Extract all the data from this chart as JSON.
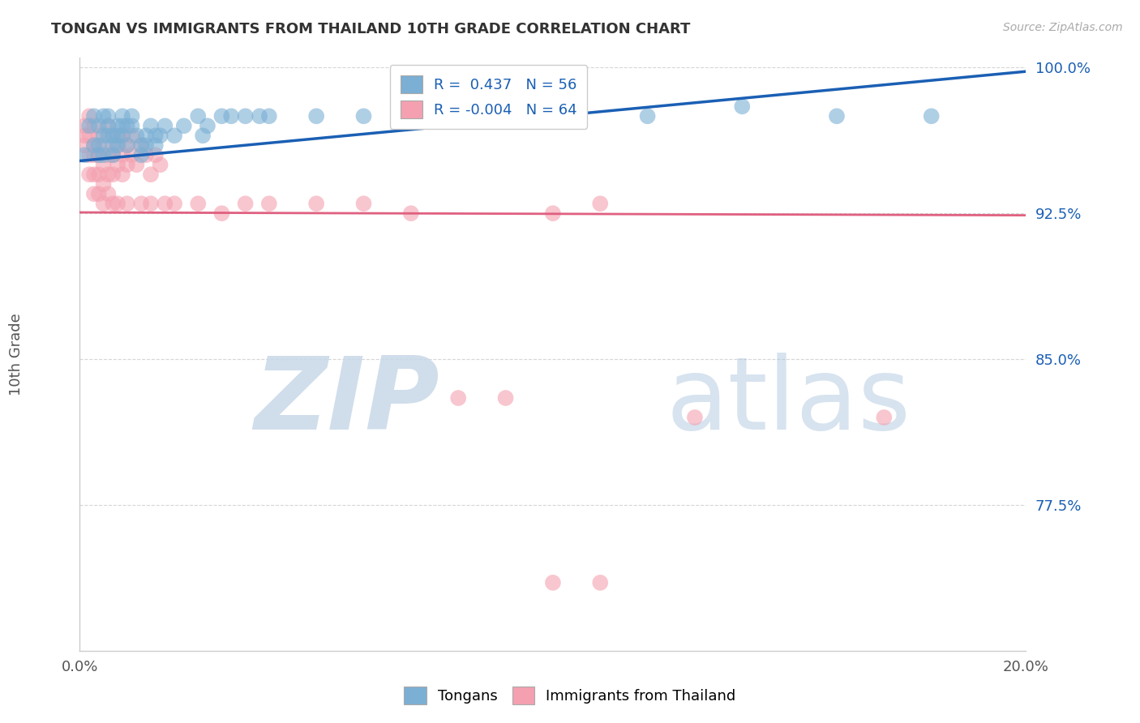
{
  "title": "TONGAN VS IMMIGRANTS FROM THAILAND 10TH GRADE CORRELATION CHART",
  "source": "Source: ZipAtlas.com",
  "xlabel": "",
  "ylabel": "10th Grade",
  "xlim": [
    0.0,
    0.2
  ],
  "ylim": [
    0.7,
    1.005
  ],
  "xticks": [
    0.0,
    0.05,
    0.1,
    0.15,
    0.2
  ],
  "xticklabels": [
    "0.0%",
    "",
    "",
    "",
    "20.0%"
  ],
  "ytick_positions": [
    0.775,
    0.85,
    0.925,
    1.0
  ],
  "ytick_labels": [
    "77.5%",
    "85.0%",
    "92.5%",
    "100.0%"
  ],
  "legend_r1": "R =  0.437   N = 56",
  "legend_r2": "R = -0.004   N = 64",
  "blue_color": "#7bafd4",
  "pink_color": "#f4a0b0",
  "blue_line_color": "#1a5fb4",
  "pink_line_color": "#e06080",
  "blue_scatter": [
    [
      0.001,
      0.955
    ],
    [
      0.002,
      0.97
    ],
    [
      0.003,
      0.96
    ],
    [
      0.003,
      0.975
    ],
    [
      0.004,
      0.97
    ],
    [
      0.004,
      0.96
    ],
    [
      0.004,
      0.955
    ],
    [
      0.005,
      0.975
    ],
    [
      0.005,
      0.965
    ],
    [
      0.005,
      0.955
    ],
    [
      0.006,
      0.975
    ],
    [
      0.006,
      0.97
    ],
    [
      0.006,
      0.965
    ],
    [
      0.007,
      0.965
    ],
    [
      0.007,
      0.96
    ],
    [
      0.007,
      0.955
    ],
    [
      0.008,
      0.97
    ],
    [
      0.008,
      0.965
    ],
    [
      0.008,
      0.96
    ],
    [
      0.009,
      0.975
    ],
    [
      0.009,
      0.97
    ],
    [
      0.009,
      0.965
    ],
    [
      0.01,
      0.97
    ],
    [
      0.01,
      0.96
    ],
    [
      0.011,
      0.975
    ],
    [
      0.011,
      0.97
    ],
    [
      0.012,
      0.965
    ],
    [
      0.013,
      0.96
    ],
    [
      0.013,
      0.955
    ],
    [
      0.014,
      0.965
    ],
    [
      0.014,
      0.96
    ],
    [
      0.015,
      0.97
    ],
    [
      0.016,
      0.965
    ],
    [
      0.016,
      0.96
    ],
    [
      0.017,
      0.965
    ],
    [
      0.018,
      0.97
    ],
    [
      0.02,
      0.965
    ],
    [
      0.022,
      0.97
    ],
    [
      0.025,
      0.975
    ],
    [
      0.026,
      0.965
    ],
    [
      0.027,
      0.97
    ],
    [
      0.03,
      0.975
    ],
    [
      0.032,
      0.975
    ],
    [
      0.035,
      0.975
    ],
    [
      0.038,
      0.975
    ],
    [
      0.04,
      0.975
    ],
    [
      0.05,
      0.975
    ],
    [
      0.06,
      0.975
    ],
    [
      0.07,
      0.975
    ],
    [
      0.08,
      0.975
    ],
    [
      0.09,
      0.98
    ],
    [
      0.1,
      0.985
    ],
    [
      0.12,
      0.975
    ],
    [
      0.14,
      0.98
    ],
    [
      0.16,
      0.975
    ],
    [
      0.18,
      0.975
    ]
  ],
  "pink_scatter": [
    [
      0.001,
      0.97
    ],
    [
      0.001,
      0.965
    ],
    [
      0.001,
      0.96
    ],
    [
      0.002,
      0.975
    ],
    [
      0.002,
      0.965
    ],
    [
      0.002,
      0.955
    ],
    [
      0.002,
      0.945
    ],
    [
      0.003,
      0.97
    ],
    [
      0.003,
      0.96
    ],
    [
      0.003,
      0.955
    ],
    [
      0.003,
      0.945
    ],
    [
      0.003,
      0.935
    ],
    [
      0.004,
      0.965
    ],
    [
      0.004,
      0.955
    ],
    [
      0.004,
      0.945
    ],
    [
      0.004,
      0.935
    ],
    [
      0.005,
      0.96
    ],
    [
      0.005,
      0.95
    ],
    [
      0.005,
      0.94
    ],
    [
      0.005,
      0.93
    ],
    [
      0.006,
      0.97
    ],
    [
      0.006,
      0.955
    ],
    [
      0.006,
      0.945
    ],
    [
      0.006,
      0.935
    ],
    [
      0.007,
      0.965
    ],
    [
      0.007,
      0.955
    ],
    [
      0.007,
      0.945
    ],
    [
      0.007,
      0.93
    ],
    [
      0.008,
      0.96
    ],
    [
      0.008,
      0.95
    ],
    [
      0.008,
      0.93
    ],
    [
      0.009,
      0.965
    ],
    [
      0.009,
      0.955
    ],
    [
      0.009,
      0.945
    ],
    [
      0.01,
      0.96
    ],
    [
      0.01,
      0.95
    ],
    [
      0.01,
      0.93
    ],
    [
      0.011,
      0.965
    ],
    [
      0.011,
      0.955
    ],
    [
      0.012,
      0.95
    ],
    [
      0.013,
      0.96
    ],
    [
      0.013,
      0.93
    ],
    [
      0.014,
      0.955
    ],
    [
      0.015,
      0.945
    ],
    [
      0.015,
      0.93
    ],
    [
      0.016,
      0.955
    ],
    [
      0.017,
      0.95
    ],
    [
      0.018,
      0.93
    ],
    [
      0.02,
      0.93
    ],
    [
      0.025,
      0.93
    ],
    [
      0.03,
      0.925
    ],
    [
      0.035,
      0.93
    ],
    [
      0.04,
      0.93
    ],
    [
      0.05,
      0.93
    ],
    [
      0.06,
      0.93
    ],
    [
      0.07,
      0.925
    ],
    [
      0.08,
      0.83
    ],
    [
      0.09,
      0.83
    ],
    [
      0.1,
      0.925
    ],
    [
      0.11,
      0.93
    ],
    [
      0.13,
      0.82
    ],
    [
      0.17,
      0.82
    ],
    [
      0.1,
      0.735
    ],
    [
      0.11,
      0.735
    ]
  ],
  "blue_reg_line": [
    [
      0.0,
      0.952
    ],
    [
      0.2,
      0.998
    ]
  ],
  "pink_reg_line": [
    [
      0.0,
      0.9255
    ],
    [
      0.2,
      0.924
    ]
  ],
  "watermark_zip": "ZIP",
  "watermark_atlas": "atlas",
  "background_color": "#ffffff",
  "grid_color": "#cccccc"
}
